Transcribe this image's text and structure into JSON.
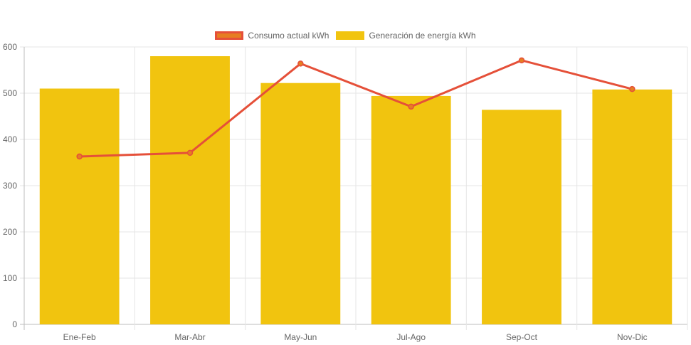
{
  "chart_data": {
    "type": "bar",
    "categories": [
      "Ene-Feb",
      "Mar-Abr",
      "May-Jun",
      "Jul-Ago",
      "Sep-Oct",
      "Nov-Dic"
    ],
    "series": [
      {
        "name": "Generación de energía kWh",
        "type": "bar",
        "values": [
          510,
          580,
          522,
          494,
          464,
          508
        ],
        "color": "#f1c40f"
      },
      {
        "name": "Consumo actual kWh",
        "type": "line",
        "values": [
          363,
          371,
          564,
          471,
          571,
          509
        ],
        "color": "#e55039",
        "fill": "#e67e22"
      }
    ],
    "ylim": [
      0,
      600
    ],
    "yticks": [
      0,
      100,
      200,
      300,
      400,
      500,
      600
    ],
    "grid": true,
    "legend_position": "top-center"
  }
}
